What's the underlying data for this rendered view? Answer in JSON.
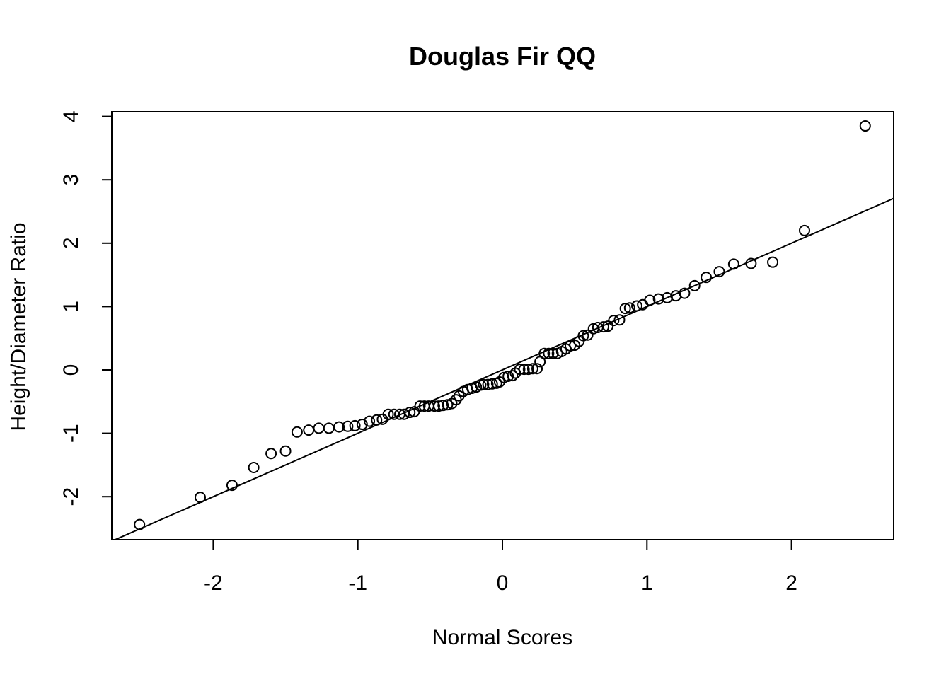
{
  "chart_data": {
    "type": "scatter",
    "title": "Douglas Fir QQ",
    "xlabel": "Normal Scores",
    "ylabel": "Height/Diameter Ratio",
    "xlim": [
      -2.7,
      2.7
    ],
    "ylim": [
      -2.7,
      4.1
    ],
    "xticks": [
      -2,
      -1,
      0,
      1,
      2
    ],
    "yticks": [
      -2,
      -1,
      0,
      1,
      2,
      3,
      4
    ],
    "grid": false,
    "reference_line": {
      "intercept": 0.0,
      "slope": 1.0
    },
    "series": [
      {
        "x": [
          -2.51,
          -2.09,
          -1.87,
          -1.72,
          -1.6,
          -1.5,
          -1.42,
          -1.34,
          -1.27,
          -1.2,
          -1.13,
          -1.07,
          -1.02,
          -0.97,
          -0.92,
          -0.87,
          -0.83,
          -0.79,
          -0.75,
          -0.71,
          -0.68,
          -0.64,
          -0.61,
          -0.57,
          -0.54,
          -0.51,
          -0.47,
          -0.44,
          -0.41,
          -0.38,
          -0.35,
          -0.32,
          -0.3,
          -0.27,
          -0.24,
          -0.21,
          -0.18,
          -0.15,
          -0.13,
          -0.1,
          -0.07,
          -0.04,
          -0.02,
          0.01,
          0.04,
          0.07,
          0.09,
          0.12,
          0.15,
          0.18,
          0.21,
          0.24,
          0.26,
          0.29,
          0.32,
          0.35,
          0.38,
          0.41,
          0.44,
          0.47,
          0.5,
          0.53,
          0.56,
          0.59,
          0.63,
          0.66,
          0.7,
          0.73,
          0.77,
          0.81,
          0.85,
          0.88,
          0.93,
          0.97,
          1.02,
          1.08,
          1.14,
          1.2,
          1.26,
          1.33,
          1.41,
          1.5,
          1.6,
          1.72,
          1.87,
          2.09,
          2.51
        ],
        "y": [
          -2.44,
          -2.01,
          -1.82,
          -1.54,
          -1.32,
          -1.28,
          -0.98,
          -0.95,
          -0.92,
          -0.92,
          -0.9,
          -0.89,
          -0.88,
          -0.86,
          -0.81,
          -0.79,
          -0.78,
          -0.7,
          -0.7,
          -0.7,
          -0.7,
          -0.67,
          -0.66,
          -0.57,
          -0.57,
          -0.57,
          -0.57,
          -0.57,
          -0.56,
          -0.55,
          -0.53,
          -0.47,
          -0.41,
          -0.34,
          -0.31,
          -0.29,
          -0.27,
          -0.24,
          -0.23,
          -0.23,
          -0.22,
          -0.21,
          -0.19,
          -0.12,
          -0.1,
          -0.09,
          -0.05,
          0.01,
          0.01,
          0.01,
          0.02,
          0.02,
          0.13,
          0.26,
          0.26,
          0.26,
          0.26,
          0.29,
          0.33,
          0.38,
          0.39,
          0.45,
          0.54,
          0.55,
          0.65,
          0.67,
          0.68,
          0.69,
          0.78,
          0.79,
          0.97,
          0.98,
          1.01,
          1.03,
          1.1,
          1.12,
          1.14,
          1.17,
          1.21,
          1.33,
          1.46,
          1.55,
          1.67,
          1.68,
          1.7,
          2.2,
          3.85
        ]
      }
    ]
  }
}
